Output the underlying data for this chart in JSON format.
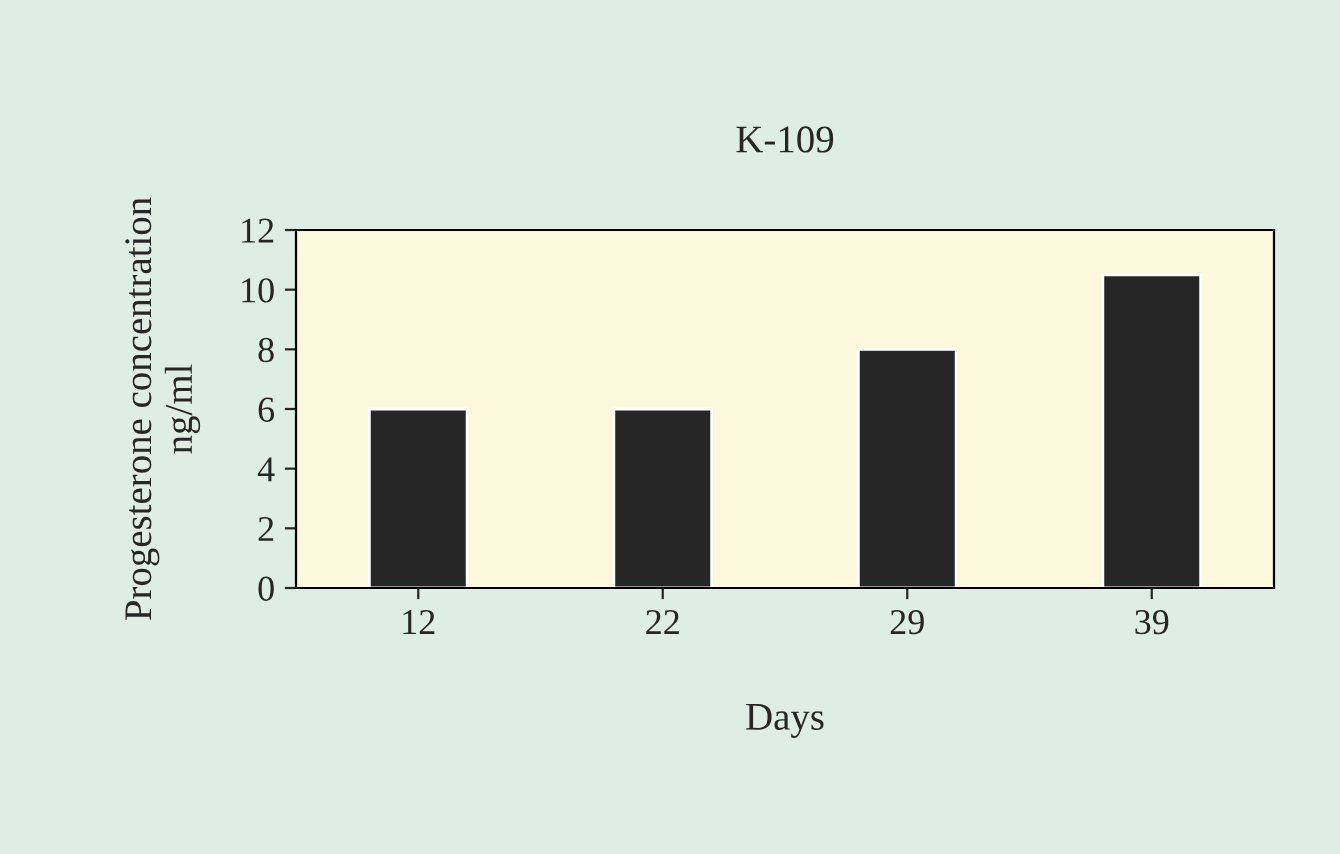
{
  "chart_data": {
    "type": "bar",
    "title": "K-109",
    "xlabel": "Days",
    "ylabel": "Progesterone concentration\nng/ml",
    "categories": [
      "12",
      "22",
      "29",
      "39"
    ],
    "values": [
      6,
      6,
      8,
      10.5
    ],
    "color": "#262626",
    "ylim": [
      0,
      12
    ],
    "yticks": [
      0,
      2,
      4,
      6,
      8,
      10,
      12
    ],
    "grid": false,
    "legend": false
  }
}
